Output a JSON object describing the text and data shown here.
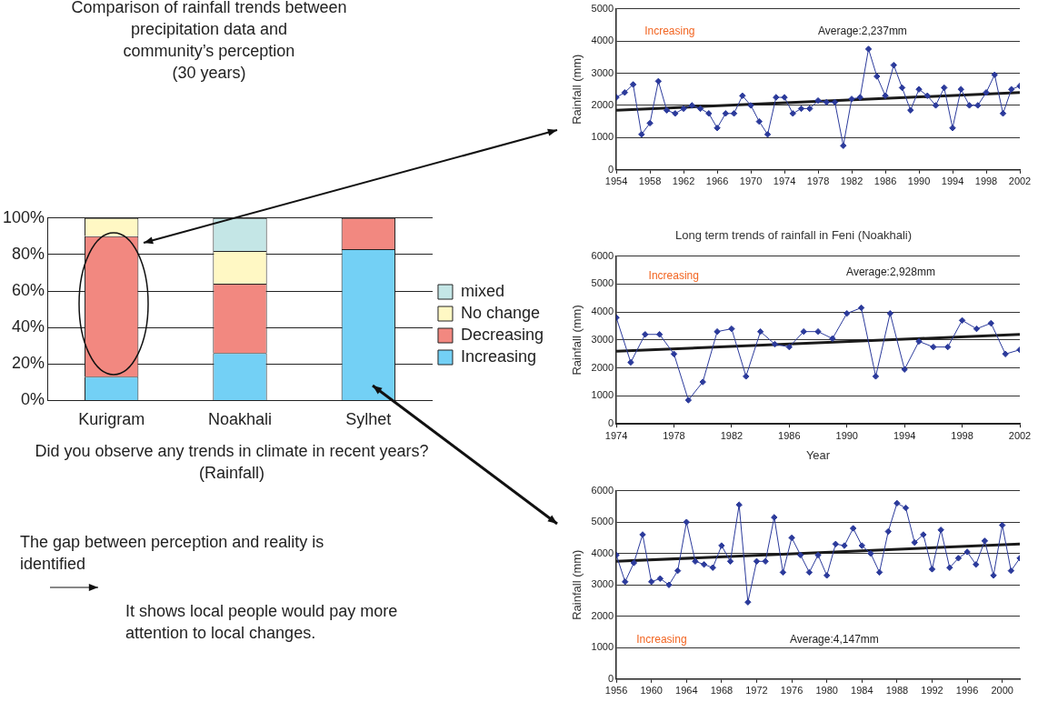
{
  "chart_data": [
    {
      "type": "bar",
      "title": "Comparison of rainfall trends between\nprecipitation data and\ncommunity’s perception\n(30 years)",
      "categories": [
        "Kurigram",
        "Noakhali",
        "Sylhet"
      ],
      "stacked": true,
      "series": [
        {
          "name": "Increasing",
          "color": "#73d0f5",
          "values": [
            13,
            26,
            83
          ]
        },
        {
          "name": "Decreasing",
          "color": "#f28880",
          "values": [
            77,
            38,
            17
          ]
        },
        {
          "name": "No change",
          "color": "#fff8c4",
          "values": [
            10,
            18,
            0
          ]
        },
        {
          "name": "mixed",
          "color": "#c4e6e6",
          "values": [
            0,
            18,
            0
          ]
        }
      ],
      "ylim": [
        0,
        100
      ],
      "yticks": [
        {
          "value": 0,
          "label": "0%"
        },
        {
          "value": 20,
          "label": "20%"
        },
        {
          "value": 40,
          "label": "40%"
        },
        {
          "value": 60,
          "label": "60%"
        },
        {
          "value": 80,
          "label": "80%"
        },
        {
          "value": 100,
          "label": "100%"
        }
      ],
      "grid": "y",
      "legend": "right",
      "annotations": [
        "Did you observe any trends in climate in recent years?(Rainfall)",
        "The gap between perception and reality is identified",
        "It shows local people would pay more attention to local changes."
      ]
    },
    {
      "type": "line",
      "ylabel": "Rainfall (mm)",
      "marker": "diamond",
      "grid": "y",
      "xlim": [
        1954,
        2002
      ],
      "xticks": [
        1954,
        1958,
        1962,
        1966,
        1970,
        1974,
        1978,
        1982,
        1986,
        1990,
        1994,
        1998,
        2002
      ],
      "ylim": [
        0,
        5000
      ],
      "yticks": [
        0,
        1000,
        2000,
        3000,
        4000,
        5000
      ],
      "x": [
        1954,
        1955,
        1956,
        1957,
        1958,
        1959,
        1960,
        1961,
        1962,
        1963,
        1964,
        1965,
        1966,
        1967,
        1968,
        1969,
        1970,
        1971,
        1972,
        1973,
        1974,
        1975,
        1976,
        1977,
        1978,
        1979,
        1980,
        1981,
        1982,
        1983,
        1984,
        1985,
        1986,
        1987,
        1988,
        1989,
        1990,
        1991,
        1992,
        1993,
        1994,
        1995,
        1996,
        1997,
        1998,
        1999,
        2000,
        2001,
        2002
      ],
      "series": [
        {
          "color": "#2b3a9b",
          "values": [
            2250,
            2400,
            2650,
            1100,
            1450,
            2750,
            1850,
            1750,
            1900,
            2000,
            1900,
            1750,
            1300,
            1750,
            1750,
            2300,
            2000,
            1500,
            1100,
            2250,
            2250,
            1750,
            1900,
            1900,
            2150,
            2100,
            2100,
            750,
            2200,
            2250,
            3750,
            2900,
            2300,
            3250,
            2550,
            1850,
            2500,
            2300,
            2000,
            2550,
            1300,
            2500,
            2000,
            2000,
            2400,
            2950,
            1750,
            2500,
            2600
          ]
        },
        {
          "color": "#1a1a1a",
          "marker": "none",
          "x": [
            1954,
            2002
          ],
          "values": [
            1850,
            2400
          ]
        }
      ],
      "annotations": [
        "Increasing",
        "Average:2,237mm"
      ]
    },
    {
      "type": "line",
      "title": "Long term trends of rainfall in Feni (Noakhali)",
      "xlabel": "Year",
      "ylabel": "Rainfall (mm)",
      "marker": "diamond",
      "grid": "y",
      "xlim": [
        1974,
        2002
      ],
      "xticks": [
        1974,
        1978,
        1982,
        1986,
        1990,
        1994,
        1998,
        2002
      ],
      "ylim": [
        0,
        6000
      ],
      "yticks": [
        0,
        1000,
        2000,
        3000,
        4000,
        5000,
        6000
      ],
      "x": [
        1974,
        1975,
        1976,
        1977,
        1978,
        1979,
        1980,
        1981,
        1982,
        1983,
        1984,
        1985,
        1986,
        1987,
        1988,
        1989,
        1990,
        1991,
        1992,
        1993,
        1994,
        1995,
        1996,
        1997,
        1998,
        1999,
        2000,
        2001,
        2002
      ],
      "series": [
        {
          "color": "#2b3a9b",
          "values": [
            3800,
            2200,
            3200,
            3200,
            2500,
            850,
            1500,
            3300,
            3400,
            1700,
            3300,
            2850,
            2750,
            3300,
            3300,
            3050,
            3950,
            4150,
            1700,
            3950,
            1950,
            2950,
            2750,
            2750,
            3700,
            3400,
            3600,
            2500,
            2650
          ]
        },
        {
          "color": "#1a1a1a",
          "marker": "none",
          "x": [
            1974,
            2002
          ],
          "values": [
            2600,
            3200
          ]
        }
      ],
      "annotations": [
        "Increasing",
        "Average:2,928mm"
      ]
    },
    {
      "type": "line",
      "ylabel": "Rainfall (mm)",
      "marker": "diamond",
      "grid": "y",
      "xlim": [
        1956,
        2002
      ],
      "xticks": [
        1956,
        1960,
        1964,
        1968,
        1972,
        1976,
        1980,
        1984,
        1988,
        1992,
        1996,
        2000
      ],
      "ylim": [
        0,
        6000
      ],
      "yticks": [
        0,
        1000,
        2000,
        3000,
        4000,
        5000,
        6000
      ],
      "x": [
        1956,
        1957,
        1958,
        1959,
        1960,
        1961,
        1962,
        1963,
        1964,
        1965,
        1966,
        1967,
        1968,
        1969,
        1970,
        1971,
        1972,
        1973,
        1974,
        1975,
        1976,
        1977,
        1978,
        1979,
        1980,
        1981,
        1982,
        1983,
        1984,
        1985,
        1986,
        1987,
        1988,
        1989,
        1990,
        1991,
        1992,
        1993,
        1994,
        1995,
        1996,
        1997,
        1998,
        1999,
        2000,
        2001,
        2002
      ],
      "series": [
        {
          "color": "#2b3a9b",
          "values": [
            3950,
            3100,
            3700,
            4600,
            3100,
            3200,
            3000,
            3450,
            5000,
            3750,
            3650,
            3550,
            4250,
            3750,
            5550,
            2450,
            3750,
            3750,
            5150,
            3400,
            4500,
            3950,
            3400,
            3950,
            3300,
            4300,
            4250,
            4800,
            4250,
            4000,
            3400,
            4700,
            5600,
            5450,
            4350,
            4600,
            3500,
            4750,
            3550,
            3850,
            4050,
            3650,
            4400,
            3300,
            4900,
            3450,
            3850
          ]
        },
        {
          "color": "#1a1a1a",
          "marker": "none",
          "x": [
            1956,
            2002
          ],
          "values": [
            3750,
            4300
          ]
        }
      ],
      "annotations": [
        "Increasing",
        "Average:4,147mm"
      ]
    }
  ]
}
